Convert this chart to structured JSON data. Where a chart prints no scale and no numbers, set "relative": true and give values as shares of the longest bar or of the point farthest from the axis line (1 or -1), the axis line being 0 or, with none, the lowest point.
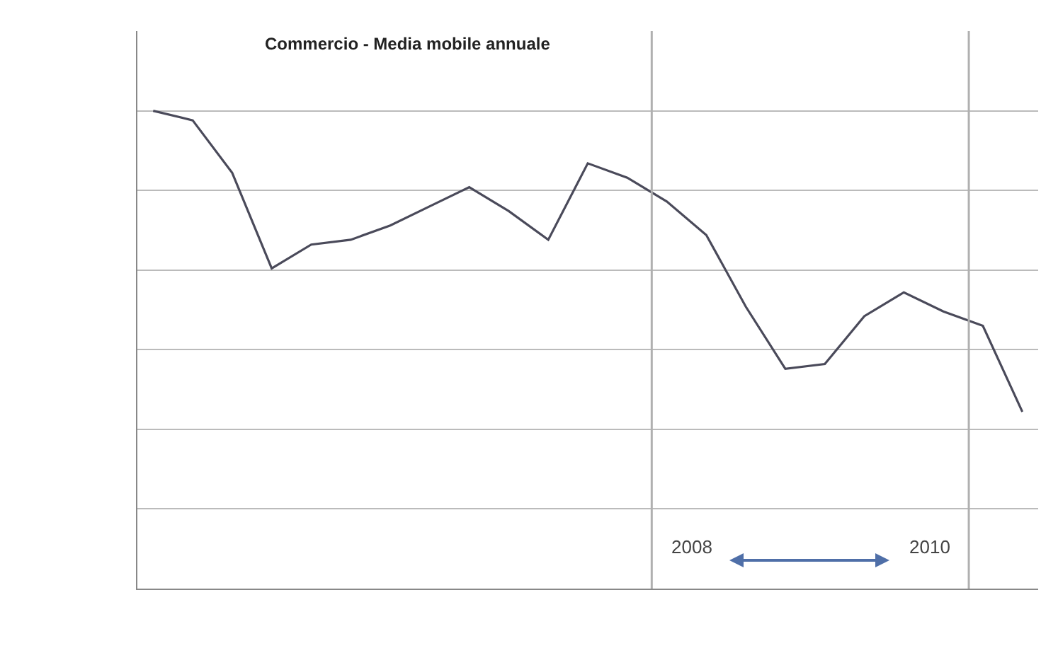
{
  "chart_data": {
    "type": "line",
    "title": "Commercio - Media mobile annuale",
    "relative": true,
    "categories": [
      null,
      null,
      null,
      null,
      null,
      null,
      null,
      null,
      null,
      null,
      null,
      null,
      null,
      null,
      null,
      null,
      null,
      null,
      null,
      null,
      null,
      null,
      null
    ],
    "series": [
      {
        "color": "#4a4a5a",
        "values": [
          1,
          0.98,
          0.87,
          0.67,
          0.72,
          0.73,
          0.76,
          0.8,
          0.84,
          0.79,
          0.73,
          0.89,
          0.86,
          0.81,
          0.74,
          0.59,
          0.46,
          0.47,
          0.57,
          0.62,
          0.58,
          0.55,
          0.37
        ]
      }
    ],
    "annotations": [
      "2008",
      "2010"
    ],
    "grid": "y",
    "marker": "none",
    "line_style": "solid"
  }
}
